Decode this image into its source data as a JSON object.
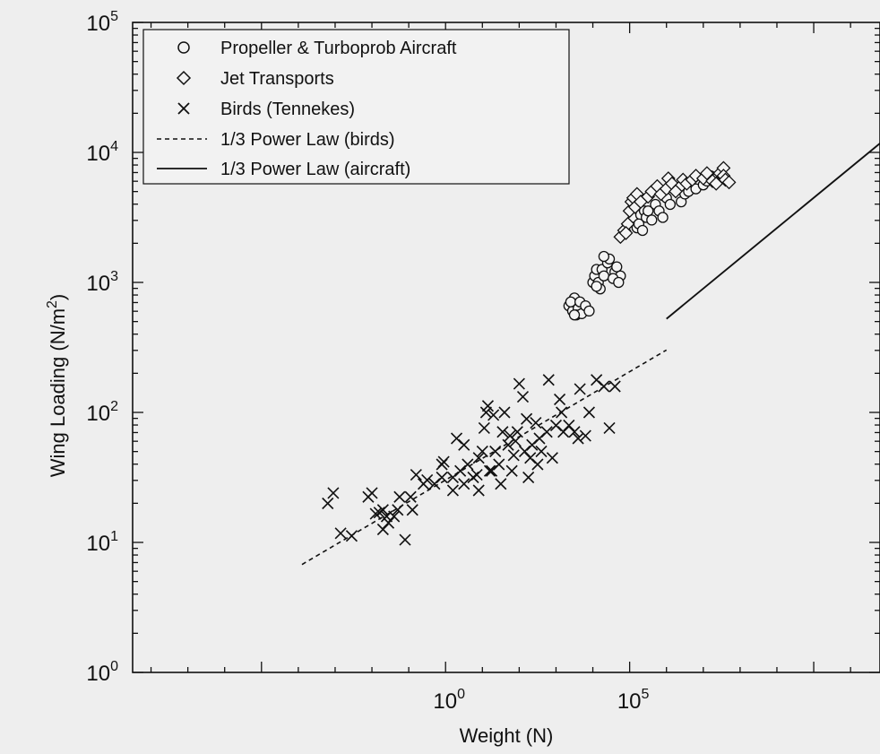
{
  "chart_data": {
    "type": "scatter",
    "log_x": true,
    "log_y": true,
    "xlim": [
      -8.5,
      11.8
    ],
    "ylim": [
      0,
      5
    ],
    "xlabel": "Weight (N)",
    "ylabel_base": "Wing Loading (N/m",
    "ylabel_exp": "2",
    "ylabel_close": ")",
    "x_ticks": [
      {
        "value": 0,
        "base": "10",
        "exp": "0"
      },
      {
        "value": 5,
        "base": "10",
        "exp": "5"
      }
    ],
    "y_ticks": [
      {
        "value": 0,
        "base": "10",
        "exp": "0"
      },
      {
        "value": 1,
        "base": "10",
        "exp": "1"
      },
      {
        "value": 2,
        "base": "10",
        "exp": "2"
      },
      {
        "value": 3,
        "base": "10",
        "exp": "3"
      },
      {
        "value": 4,
        "base": "10",
        "exp": "4"
      },
      {
        "value": 5,
        "base": "10",
        "exp": "5"
      }
    ],
    "legend_position": "top-left",
    "series": [
      {
        "name": "Propeller & Turboprob Aircraft",
        "marker": "circle",
        "points": [
          [
            3.35,
            2.82
          ],
          [
            3.45,
            2.78
          ],
          [
            3.5,
            2.88
          ],
          [
            3.6,
            2.8
          ],
          [
            3.55,
            2.75
          ],
          [
            3.4,
            2.85
          ],
          [
            3.7,
            2.76
          ],
          [
            3.65,
            2.85
          ],
          [
            3.8,
            2.82
          ],
          [
            3.9,
            2.78
          ],
          [
            3.5,
            2.75
          ],
          [
            4.0,
            3.0
          ],
          [
            4.05,
            3.05
          ],
          [
            4.1,
            3.1
          ],
          [
            4.15,
            3.0
          ],
          [
            4.2,
            2.95
          ],
          [
            4.1,
            2.97
          ],
          [
            4.25,
            3.1
          ],
          [
            4.3,
            3.05
          ],
          [
            4.4,
            3.15
          ],
          [
            4.45,
            3.18
          ],
          [
            4.6,
            3.08
          ],
          [
            4.65,
            3.12
          ],
          [
            4.75,
            3.05
          ],
          [
            4.55,
            3.03
          ],
          [
            4.3,
            3.2
          ],
          [
            4.7,
            3.0
          ],
          [
            5.1,
            3.5
          ],
          [
            5.2,
            3.42
          ],
          [
            5.3,
            3.52
          ],
          [
            5.25,
            3.45
          ],
          [
            5.4,
            3.55
          ],
          [
            5.45,
            3.5
          ],
          [
            5.5,
            3.55
          ],
          [
            5.6,
            3.48
          ],
          [
            5.7,
            3.6
          ],
          [
            5.8,
            3.55
          ],
          [
            6.0,
            3.65
          ],
          [
            6.1,
            3.6
          ],
          [
            6.4,
            3.62
          ],
          [
            6.5,
            3.68
          ],
          [
            6.6,
            3.7
          ],
          [
            6.8,
            3.72
          ],
          [
            7.0,
            3.75
          ],
          [
            7.1,
            3.78
          ],
          [
            7.2,
            3.82
          ],
          [
            7.4,
            3.82
          ],
          [
            5.35,
            3.4
          ],
          [
            5.9,
            3.5
          ]
        ]
      },
      {
        "name": "Jet Transports",
        "marker": "diamond",
        "points": [
          [
            4.75,
            3.35
          ],
          [
            4.85,
            3.4
          ],
          [
            4.95,
            3.45
          ],
          [
            5.0,
            3.55
          ],
          [
            5.05,
            3.62
          ],
          [
            5.1,
            3.65
          ],
          [
            5.15,
            3.58
          ],
          [
            5.2,
            3.68
          ],
          [
            5.3,
            3.62
          ],
          [
            5.5,
            3.66
          ],
          [
            5.6,
            3.7
          ],
          [
            5.75,
            3.74
          ],
          [
            5.85,
            3.68
          ],
          [
            6.0,
            3.72
          ],
          [
            6.05,
            3.8
          ],
          [
            6.15,
            3.76
          ],
          [
            6.35,
            3.73
          ],
          [
            6.45,
            3.79
          ],
          [
            6.55,
            3.76
          ],
          [
            6.7,
            3.79
          ],
          [
            6.8,
            3.82
          ],
          [
            7.0,
            3.8
          ],
          [
            7.1,
            3.84
          ],
          [
            7.25,
            3.78
          ],
          [
            7.35,
            3.76
          ],
          [
            7.45,
            3.84
          ],
          [
            7.55,
            3.88
          ],
          [
            7.55,
            3.82
          ],
          [
            7.6,
            3.79
          ],
          [
            7.7,
            3.77
          ],
          [
            4.9,
            3.38
          ],
          [
            6.25,
            3.7
          ]
        ]
      },
      {
        "name": "Birds (Tennekes)",
        "marker": "x",
        "points": [
          [
            -3.2,
            1.3
          ],
          [
            -3.05,
            1.38
          ],
          [
            -2.85,
            1.07
          ],
          [
            -2.55,
            1.05
          ],
          [
            -2.1,
            1.35
          ],
          [
            -2.0,
            1.38
          ],
          [
            -1.9,
            1.22
          ],
          [
            -1.8,
            1.23
          ],
          [
            -1.7,
            1.25
          ],
          [
            -1.7,
            1.1
          ],
          [
            -1.6,
            1.2
          ],
          [
            -1.55,
            1.15
          ],
          [
            -1.4,
            1.2
          ],
          [
            -1.3,
            1.25
          ],
          [
            -1.25,
            1.35
          ],
          [
            -1.1,
            1.02
          ],
          [
            -0.95,
            1.35
          ],
          [
            -0.9,
            1.25
          ],
          [
            -0.8,
            1.52
          ],
          [
            -0.6,
            1.45
          ],
          [
            -0.5,
            1.48
          ],
          [
            -0.3,
            1.45
          ],
          [
            -0.1,
            1.6
          ],
          [
            -0.05,
            1.62
          ],
          [
            -0.1,
            1.5
          ],
          [
            0.2,
            1.4
          ],
          [
            0.2,
            1.5
          ],
          [
            0.3,
            1.8
          ],
          [
            0.4,
            1.55
          ],
          [
            0.5,
            1.45
          ],
          [
            0.6,
            1.6
          ],
          [
            0.75,
            1.5
          ],
          [
            0.85,
            1.52
          ],
          [
            0.9,
            1.65
          ],
          [
            0.9,
            1.4
          ],
          [
            1.0,
            1.7
          ],
          [
            1.05,
            1.88
          ],
          [
            1.1,
            2.0
          ],
          [
            1.15,
            2.05
          ],
          [
            1.2,
            1.55
          ],
          [
            1.3,
            1.98
          ],
          [
            1.35,
            1.7
          ],
          [
            1.45,
            1.6
          ],
          [
            1.5,
            1.45
          ],
          [
            1.55,
            1.85
          ],
          [
            1.6,
            2.0
          ],
          [
            1.7,
            1.75
          ],
          [
            1.75,
            1.82
          ],
          [
            1.8,
            1.55
          ],
          [
            1.85,
            1.67
          ],
          [
            1.9,
            1.78
          ],
          [
            1.95,
            1.85
          ],
          [
            2.0,
            2.22
          ],
          [
            2.1,
            2.12
          ],
          [
            2.2,
            1.95
          ],
          [
            2.25,
            1.5
          ],
          [
            2.3,
            1.65
          ],
          [
            2.35,
            1.75
          ],
          [
            2.45,
            1.92
          ],
          [
            2.5,
            1.6
          ],
          [
            2.55,
            1.8
          ],
          [
            2.6,
            1.7
          ],
          [
            2.75,
            1.85
          ],
          [
            2.8,
            2.25
          ],
          [
            2.9,
            1.65
          ],
          [
            3.0,
            1.9
          ],
          [
            3.1,
            2.1
          ],
          [
            3.15,
            2.0
          ],
          [
            3.2,
            1.85
          ],
          [
            3.35,
            1.9
          ],
          [
            3.5,
            1.85
          ],
          [
            3.6,
            1.8
          ],
          [
            3.65,
            2.18
          ],
          [
            3.8,
            1.82
          ],
          [
            3.9,
            2.0
          ],
          [
            4.1,
            2.25
          ],
          [
            4.3,
            2.2
          ],
          [
            4.45,
            1.88
          ],
          [
            4.6,
            2.2
          ],
          [
            0.5,
            1.75
          ],
          [
            1.25,
            1.55
          ],
          [
            2.15,
            1.7
          ]
        ]
      },
      {
        "name": "1/3 Power Law (birds)",
        "line_style": "dashed",
        "points": [
          [
            -3.9,
            0.83
          ],
          [
            6.0,
            2.48
          ]
        ]
      },
      {
        "name": "1/3 Power Law (aircraft)",
        "line_style": "solid",
        "points": [
          [
            6.0,
            2.72
          ],
          [
            11.8,
            4.07
          ]
        ]
      }
    ]
  }
}
